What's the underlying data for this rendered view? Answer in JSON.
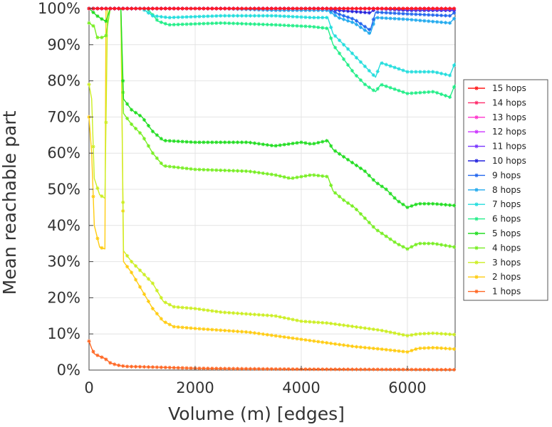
{
  "chart_data": {
    "type": "line",
    "title": "",
    "xlabel": "Volume (m) [edges]",
    "ylabel": "Mean reachable part",
    "xlim": [
      0,
      6900
    ],
    "ylim": [
      0,
      100
    ],
    "x_ticks": [
      0,
      2000,
      4000,
      6000
    ],
    "x_tick_labels": [
      "0",
      "2000",
      "4000",
      "6000"
    ],
    "y_ticks": [
      0,
      10,
      20,
      30,
      40,
      50,
      60,
      70,
      80,
      90,
      100
    ],
    "y_tick_labels": [
      "0%",
      "10%",
      "20%",
      "30%",
      "40%",
      "50%",
      "60%",
      "70%",
      "80%",
      "90%",
      "100%"
    ],
    "grid": true,
    "legend_position": "right",
    "series": [
      {
        "name": "15 hops",
        "color": "#ff1a1a",
        "points": [
          [
            0,
            100
          ],
          [
            6900,
            100
          ]
        ]
      },
      {
        "name": "14 hops",
        "color": "#ff2a6a",
        "points": [
          [
            0,
            100
          ],
          [
            6900,
            100
          ]
        ]
      },
      {
        "name": "13 hops",
        "color": "#ff33cc",
        "points": [
          [
            0,
            100
          ],
          [
            6900,
            100
          ]
        ]
      },
      {
        "name": "12 hops",
        "color": "#cc33ff",
        "points": [
          [
            0,
            100
          ],
          [
            6900,
            100
          ]
        ]
      },
      {
        "name": "11 hops",
        "color": "#7733ff",
        "points": [
          [
            0,
            100
          ],
          [
            4600,
            100
          ],
          [
            6900,
            99.8
          ]
        ]
      },
      {
        "name": "10 hops",
        "color": "#2222dd",
        "points": [
          [
            0,
            100
          ],
          [
            4500,
            100
          ],
          [
            4700,
            99.5
          ],
          [
            5300,
            98.8
          ],
          [
            5400,
            100
          ],
          [
            6000,
            99.5
          ],
          [
            6900,
            99.5
          ]
        ]
      },
      {
        "name": "9 hops",
        "color": "#2266ee",
        "points": [
          [
            0,
            100
          ],
          [
            4500,
            100
          ],
          [
            4700,
            98.5
          ],
          [
            5000,
            97
          ],
          [
            5300,
            94
          ],
          [
            5400,
            99
          ],
          [
            6000,
            98.5
          ],
          [
            6800,
            98
          ],
          [
            6900,
            99
          ]
        ]
      },
      {
        "name": "8 hops",
        "color": "#22aaee",
        "points": [
          [
            0,
            100
          ],
          [
            2500,
            100
          ],
          [
            3500,
            99.5
          ],
          [
            4500,
            99.5
          ],
          [
            4700,
            97.5
          ],
          [
            5000,
            96
          ],
          [
            5300,
            93
          ],
          [
            5400,
            97.5
          ],
          [
            6000,
            97
          ],
          [
            6800,
            96
          ],
          [
            6900,
            97.5
          ]
        ]
      },
      {
        "name": "7 hops",
        "color": "#22dddd",
        "points": [
          [
            0,
            100
          ],
          [
            1000,
            100
          ],
          [
            1200,
            98
          ],
          [
            1500,
            97.5
          ],
          [
            2500,
            98
          ],
          [
            3500,
            98
          ],
          [
            4200,
            97.5
          ],
          [
            4500,
            97.5
          ],
          [
            4600,
            93
          ],
          [
            4800,
            90
          ],
          [
            5000,
            87
          ],
          [
            5200,
            84
          ],
          [
            5400,
            81
          ],
          [
            5500,
            85
          ],
          [
            6000,
            82.5
          ],
          [
            6500,
            82.5
          ],
          [
            6800,
            81.5
          ],
          [
            6900,
            85
          ]
        ]
      },
      {
        "name": "6 hops",
        "color": "#22ee88",
        "points": [
          [
            0,
            100
          ],
          [
            1100,
            100
          ],
          [
            1300,
            96.5
          ],
          [
            1500,
            95.5
          ],
          [
            2500,
            96
          ],
          [
            3500,
            95.5
          ],
          [
            4200,
            95
          ],
          [
            4500,
            94.5
          ],
          [
            4600,
            90
          ],
          [
            4800,
            86
          ],
          [
            5000,
            82
          ],
          [
            5200,
            79
          ],
          [
            5400,
            77
          ],
          [
            5500,
            79
          ],
          [
            6000,
            76.5
          ],
          [
            6500,
            77
          ],
          [
            6800,
            75.5
          ],
          [
            6900,
            79
          ]
        ]
      },
      {
        "name": "5 hops",
        "color": "#22dd22",
        "points": [
          [
            0,
            100
          ],
          [
            150,
            98
          ],
          [
            250,
            97
          ],
          [
            320,
            96.5
          ],
          [
            400,
            100
          ],
          [
            600,
            100
          ],
          [
            650,
            75
          ],
          [
            800,
            72
          ],
          [
            1000,
            70
          ],
          [
            1200,
            66
          ],
          [
            1400,
            63.5
          ],
          [
            2000,
            63
          ],
          [
            2500,
            63
          ],
          [
            3000,
            63
          ],
          [
            3500,
            62
          ],
          [
            4000,
            63
          ],
          [
            4200,
            62.5
          ],
          [
            4500,
            63.5
          ],
          [
            4600,
            61
          ],
          [
            4800,
            59
          ],
          [
            5000,
            57
          ],
          [
            5200,
            55
          ],
          [
            5400,
            52
          ],
          [
            5600,
            50
          ],
          [
            5800,
            47
          ],
          [
            6000,
            45
          ],
          [
            6200,
            46
          ],
          [
            6500,
            46
          ],
          [
            6900,
            45.5
          ]
        ]
      },
      {
        "name": "4 hops",
        "color": "#77ee22",
        "points": [
          [
            0,
            96
          ],
          [
            100,
            95
          ],
          [
            150,
            92
          ],
          [
            250,
            92
          ],
          [
            320,
            92.5
          ],
          [
            400,
            100
          ],
          [
            600,
            100
          ],
          [
            650,
            71
          ],
          [
            800,
            68
          ],
          [
            1000,
            65
          ],
          [
            1200,
            60
          ],
          [
            1400,
            56.5
          ],
          [
            2000,
            55.5
          ],
          [
            3000,
            55
          ],
          [
            3500,
            54
          ],
          [
            3800,
            53
          ],
          [
            4200,
            54
          ],
          [
            4500,
            53.5
          ],
          [
            4600,
            49.5
          ],
          [
            4800,
            47
          ],
          [
            5000,
            45
          ],
          [
            5200,
            42
          ],
          [
            5400,
            39
          ],
          [
            5600,
            37
          ],
          [
            5800,
            35
          ],
          [
            6000,
            33.5
          ],
          [
            6200,
            35
          ],
          [
            6500,
            35
          ],
          [
            6900,
            34
          ]
        ]
      },
      {
        "name": "3 hops",
        "color": "#ccee22",
        "points": [
          [
            0,
            79
          ],
          [
            50,
            75
          ],
          [
            100,
            53
          ],
          [
            200,
            48.5
          ],
          [
            300,
            47.5
          ],
          [
            350,
            100
          ],
          [
            600,
            100
          ],
          [
            650,
            33
          ],
          [
            800,
            30
          ],
          [
            1000,
            27
          ],
          [
            1200,
            24
          ],
          [
            1400,
            19
          ],
          [
            1600,
            17.5
          ],
          [
            2000,
            17
          ],
          [
            2500,
            16
          ],
          [
            3000,
            15.5
          ],
          [
            3500,
            15
          ],
          [
            4000,
            13.5
          ],
          [
            4500,
            13
          ],
          [
            5000,
            12
          ],
          [
            5500,
            11
          ],
          [
            6000,
            9.5
          ],
          [
            6200,
            10
          ],
          [
            6500,
            10.2
          ],
          [
            6900,
            9.8
          ]
        ]
      },
      {
        "name": "2 hops",
        "color": "#ffcc11",
        "points": [
          [
            0,
            70
          ],
          [
            50,
            60
          ],
          [
            100,
            40
          ],
          [
            200,
            34
          ],
          [
            300,
            33.5
          ],
          [
            320,
            100
          ],
          [
            600,
            100
          ],
          [
            650,
            30
          ],
          [
            800,
            27
          ],
          [
            1000,
            22
          ],
          [
            1200,
            17
          ],
          [
            1400,
            13.5
          ],
          [
            1600,
            12
          ],
          [
            2000,
            11.5
          ],
          [
            2500,
            11
          ],
          [
            3000,
            10.5
          ],
          [
            3500,
            9.5
          ],
          [
            4000,
            8.5
          ],
          [
            4500,
            7.5
          ],
          [
            5000,
            6.5
          ],
          [
            5500,
            5.8
          ],
          [
            6000,
            5
          ],
          [
            6200,
            6
          ],
          [
            6500,
            6.2
          ],
          [
            6900,
            5.8
          ]
        ]
      },
      {
        "name": "1 hops",
        "color": "#ff6622",
        "points": [
          [
            0,
            8
          ],
          [
            50,
            6
          ],
          [
            100,
            4.5
          ],
          [
            200,
            3.8
          ],
          [
            300,
            3.2
          ],
          [
            400,
            2
          ],
          [
            500,
            1.5
          ],
          [
            600,
            1.2
          ],
          [
            700,
            1
          ],
          [
            1000,
            0.9
          ],
          [
            2000,
            0.5
          ],
          [
            3000,
            0.35
          ],
          [
            4000,
            0.25
          ],
          [
            5000,
            0.2
          ],
          [
            6000,
            0.15
          ],
          [
            6900,
            0.1
          ]
        ]
      }
    ]
  }
}
